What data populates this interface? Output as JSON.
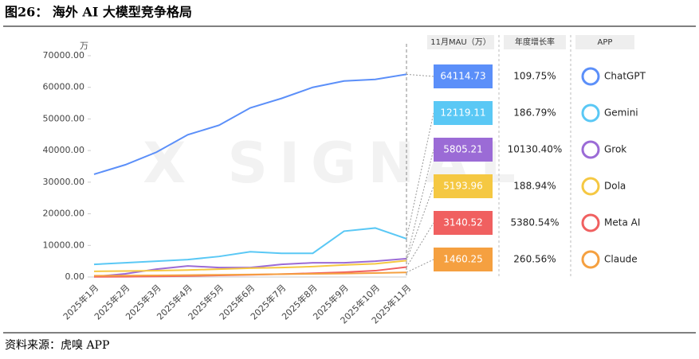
{
  "chart_data": {
    "type": "line",
    "title": "图26： 海外 AI 大模型竞争格局",
    "y_label": "万",
    "source": "资料来源：虎嗅 APP",
    "watermark": "X SIGNAL",
    "table_headers": [
      "11月MAU（万）",
      "年度增长率",
      "APP"
    ],
    "categories": [
      "2025年1月",
      "2025年2月",
      "2025年3月",
      "2025年4月",
      "2025年5月",
      "2025年6月",
      "2025年7月",
      "2025年8月",
      "2025年9月",
      "2025年10月",
      "2025年11月"
    ],
    "ylim": [
      0,
      70000
    ],
    "yticks": [
      {
        "value": 0,
        "label": "0.00"
      },
      {
        "value": 10000,
        "label": "10000.00"
      },
      {
        "value": 20000,
        "label": "20000.00"
      },
      {
        "value": 30000,
        "label": "30000.00"
      },
      {
        "value": 40000,
        "label": "40000.00"
      },
      {
        "value": 50000,
        "label": "50000.00"
      },
      {
        "value": 60000,
        "label": "60000.00"
      },
      {
        "value": 70000,
        "label": "70000.00"
      }
    ],
    "series": [
      {
        "name": "ChatGPT",
        "color": "#5b8ff9",
        "growth": "109.75%",
        "values": [
          32500,
          35500,
          39500,
          45000,
          48000,
          53500,
          56500,
          60000,
          62000,
          62500,
          64114.73
        ]
      },
      {
        "name": "Gemini",
        "color": "#5ac8f5",
        "growth": "186.79%",
        "values": [
          4000,
          4500,
          5000,
          5500,
          6500,
          8000,
          7500,
          7500,
          14500,
          15500,
          12119.11
        ]
      },
      {
        "name": "Grok",
        "color": "#9b6bd6",
        "growth": "10130.40%",
        "values": [
          100,
          1000,
          2500,
          3500,
          3000,
          3000,
          4000,
          4500,
          4500,
          5000,
          5805.21
        ]
      },
      {
        "name": "Dola",
        "color": "#f5c842",
        "growth": "188.94%",
        "values": [
          1800,
          1900,
          2000,
          2200,
          2500,
          2800,
          3000,
          3300,
          3800,
          4200,
          5193.96
        ]
      },
      {
        "name": "Meta AI",
        "color": "#f06060",
        "growth": "5380.54%",
        "values": [
          60,
          100,
          200,
          300,
          500,
          700,
          900,
          1200,
          1500,
          2000,
          3140.52
        ]
      },
      {
        "name": "Claude",
        "color": "#f5a040",
        "growth": "260.56%",
        "values": [
          400,
          450,
          500,
          600,
          700,
          800,
          900,
          1000,
          1100,
          1250,
          1460.25
        ]
      }
    ]
  }
}
